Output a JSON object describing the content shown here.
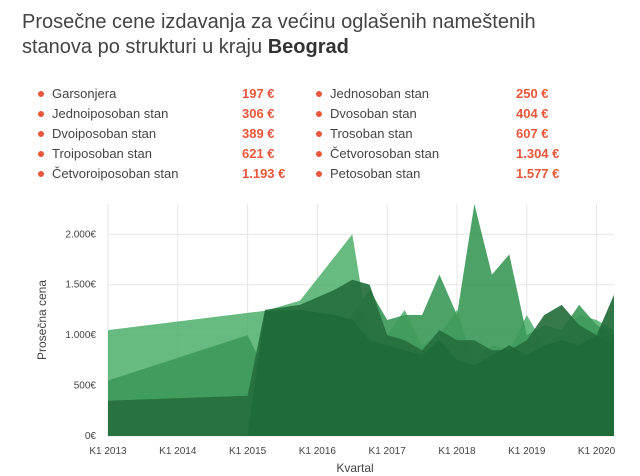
{
  "title": {
    "line1": "Prosečne cene izdavanja za većinu oglašenih nameštenih",
    "line2_prefix": "stanova po strukturi u kraju",
    "line2_city": "Beograd"
  },
  "colors": {
    "accent": "#e8573c",
    "light_green": "#4caf6a",
    "dark_green": "#2f7d46",
    "darkest_green": "#1f6b38",
    "grid": "#e6e6e6"
  },
  "prices": [
    {
      "name": "Garsonjera",
      "price": "197 €"
    },
    {
      "name": "Jednoiposoban stan",
      "price": "306 €"
    },
    {
      "name": "Dvoiposoban stan",
      "price": "389 €"
    },
    {
      "name": "Troiposoban stan",
      "price": "621 €"
    },
    {
      "name": "Četvoroiposoban stan",
      "price": "1.193 €"
    },
    {
      "name": "Jednosoban stan",
      "price": "250 €"
    },
    {
      "name": "Dvosoban stan",
      "price": "404 €"
    },
    {
      "name": "Trosoban stan",
      "price": "607 €"
    },
    {
      "name": "Četvorosoban stan",
      "price": "1.304 €"
    },
    {
      "name": "Petosoban stan",
      "price": "1.577 €"
    }
  ],
  "chart_data": {
    "type": "area",
    "xlabel": "Kvartal",
    "ylabel": "Prosečna cena",
    "ylim": [
      0,
      2300
    ],
    "xlim": [
      2013.0,
      2020.25
    ],
    "yticks": [
      {
        "value": 0,
        "label": "0€"
      },
      {
        "value": 500,
        "label": "500€"
      },
      {
        "value": 1000,
        "label": "1.000€"
      },
      {
        "value": 1500,
        "label": "1.500€"
      },
      {
        "value": 2000,
        "label": "2.000€"
      }
    ],
    "xticks": [
      {
        "value": 2013,
        "label": "K1 2013"
      },
      {
        "value": 2014,
        "label": "K1 2014"
      },
      {
        "value": 2015,
        "label": "K1 2015"
      },
      {
        "value": 2016,
        "label": "K1 2016"
      },
      {
        "value": 2017,
        "label": "K1 2017"
      },
      {
        "value": 2018,
        "label": "K1 2018"
      },
      {
        "value": 2019,
        "label": "K1 2019"
      },
      {
        "value": 2020,
        "label": "K1 2020"
      }
    ],
    "grid": true,
    "series": [
      {
        "color": "#4caf6a",
        "points": [
          [
            2013.0,
            1050
          ],
          [
            2015.0,
            1220
          ],
          [
            2015.25,
            1240
          ],
          [
            2015.75,
            1340
          ],
          [
            2016.5,
            2000
          ],
          [
            2016.75,
            950
          ],
          [
            2017.0,
            1000
          ],
          [
            2017.25,
            1250
          ],
          [
            2017.5,
            900
          ],
          [
            2017.75,
            1000
          ],
          [
            2018.0,
            1250
          ],
          [
            2018.25,
            700
          ],
          [
            2018.5,
            900
          ],
          [
            2018.75,
            850
          ],
          [
            2019.0,
            1200
          ],
          [
            2019.25,
            900
          ],
          [
            2019.5,
            1000
          ],
          [
            2019.75,
            1200
          ],
          [
            2020.0,
            1150
          ],
          [
            2020.25,
            1050
          ]
        ]
      },
      {
        "color": "#3e9a5a",
        "points": [
          [
            2013.0,
            550
          ],
          [
            2015.0,
            1000
          ],
          [
            2015.25,
            650
          ],
          [
            2015.75,
            1000
          ],
          [
            2016.25,
            1000
          ],
          [
            2016.5,
            1200
          ],
          [
            2016.75,
            1450
          ],
          [
            2017.0,
            1150
          ],
          [
            2017.25,
            1200
          ],
          [
            2017.5,
            1200
          ],
          [
            2017.75,
            1600
          ],
          [
            2018.0,
            1200
          ],
          [
            2018.25,
            2300
          ],
          [
            2018.5,
            1600
          ],
          [
            2018.75,
            1800
          ],
          [
            2019.0,
            1000
          ],
          [
            2019.25,
            1100
          ],
          [
            2019.5,
            1050
          ],
          [
            2019.75,
            1300
          ],
          [
            2020.0,
            1100
          ],
          [
            2020.25,
            1000
          ]
        ]
      },
      {
        "color": "#256f3c",
        "points": [
          [
            2013.0,
            350
          ],
          [
            2015.0,
            400
          ],
          [
            2015.25,
            1250
          ],
          [
            2015.75,
            1300
          ],
          [
            2016.25,
            1450
          ],
          [
            2016.5,
            1550
          ],
          [
            2016.75,
            1500
          ],
          [
            2017.0,
            1000
          ],
          [
            2017.25,
            950
          ],
          [
            2017.5,
            850
          ],
          [
            2017.75,
            1050
          ],
          [
            2018.0,
            950
          ],
          [
            2018.25,
            950
          ],
          [
            2018.5,
            850
          ],
          [
            2018.75,
            850
          ],
          [
            2019.0,
            950
          ],
          [
            2019.25,
            1200
          ],
          [
            2019.5,
            1300
          ],
          [
            2019.75,
            1100
          ],
          [
            2020.0,
            1000
          ],
          [
            2020.25,
            900
          ]
        ]
      },
      {
        "color": "#1f6b38",
        "points": [
          [
            2013.0,
            0
          ],
          [
            2015.0,
            0
          ],
          [
            2015.25,
            1240
          ],
          [
            2015.75,
            1250
          ],
          [
            2016.25,
            1200
          ],
          [
            2016.5,
            1150
          ],
          [
            2016.75,
            950
          ],
          [
            2017.0,
            900
          ],
          [
            2017.25,
            850
          ],
          [
            2017.5,
            800
          ],
          [
            2017.75,
            950
          ],
          [
            2018.0,
            750
          ],
          [
            2018.25,
            700
          ],
          [
            2018.5,
            800
          ],
          [
            2018.75,
            900
          ],
          [
            2019.0,
            800
          ],
          [
            2019.25,
            900
          ],
          [
            2019.5,
            950
          ],
          [
            2019.75,
            900
          ],
          [
            2020.0,
            1000
          ],
          [
            2020.25,
            1400
          ]
        ]
      }
    ]
  }
}
